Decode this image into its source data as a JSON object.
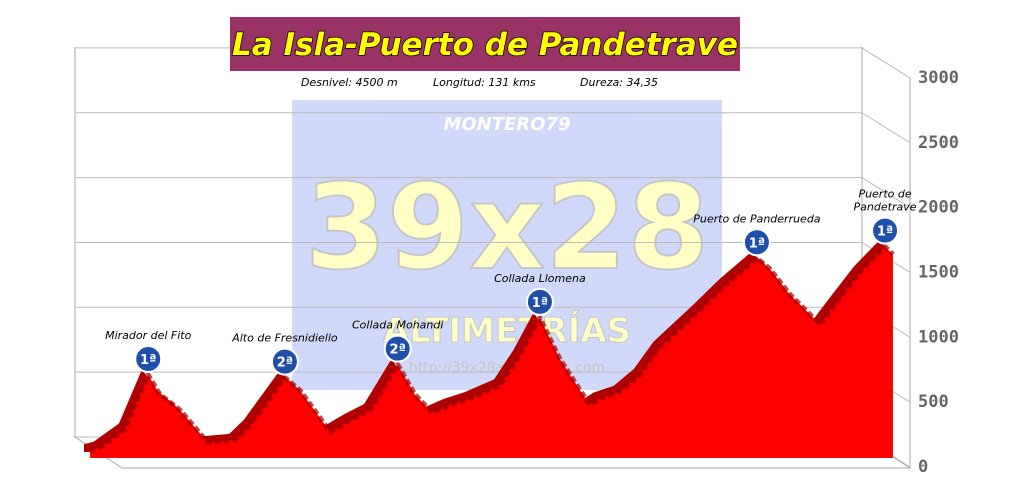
{
  "chart_data": {
    "type": "area",
    "title": "La Isla-Puerto de Pandetrave",
    "stats": [
      "Desnivel:  4500 m",
      "Longitud:  131 kms",
      "Dureza: 34,35"
    ],
    "watermark": {
      "author": "MONTERO79",
      "brand": "39x28",
      "subtitle": "ALTIMETRÍAS",
      "url": "http://39x28altimetrias.com"
    },
    "color": "#ff0000",
    "x": [
      0,
      1.6,
      5.7,
      9.5,
      11.4,
      14.7,
      19.2,
      23.7,
      26.1,
      31.8,
      34.3,
      39.2,
      42.4,
      45.7,
      50.2,
      53.0,
      55.8,
      58.7,
      62.0,
      66.9,
      70.1,
      73.4,
      76.7,
      81.5,
      83.2,
      86.4,
      89.7,
      92.9,
      99.5,
      103.6,
      108.8,
      110.9,
      114.2,
      119.1,
      121.5,
      125.6,
      129.7,
      131
    ],
    "values": [
      60,
      80,
      220,
      640,
      490,
      370,
      120,
      140,
      250,
      620,
      520,
      200,
      290,
      370,
      720,
      490,
      350,
      410,
      460,
      560,
      790,
      1080,
      760,
      410,
      460,
      510,
      640,
      850,
      1140,
      1330,
      1540,
      1460,
      1260,
      1030,
      1180,
      1430,
      1630,
      1570
    ],
    "xlim": [
      0,
      131
    ],
    "ylim": [
      0,
      3000
    ],
    "yticks": [
      0,
      500,
      1000,
      1500,
      2000,
      2500,
      3000
    ],
    "grid": true,
    "annotations": [
      {
        "text": [
          "Mirador del Fito"
        ],
        "category": "1ª",
        "x": 9.5,
        "y": 640
      },
      {
        "text": [
          "Alto de Fresnidiello"
        ],
        "category": "2ª",
        "x": 31.8,
        "y": 620
      },
      {
        "text": [
          "Collada Mohandi"
        ],
        "category": "2ª",
        "x": 50.2,
        "y": 720
      },
      {
        "text": [
          "Collada Llomena"
        ],
        "category": "1ª",
        "x": 73.4,
        "y": 1080
      },
      {
        "text": [
          "Puerto de Panderrueda"
        ],
        "category": "1ª",
        "x": 108.8,
        "y": 1540
      },
      {
        "text": [
          "Puerto de",
          "Pandetrave"
        ],
        "category": "1ª",
        "x": 129.7,
        "y": 1630
      }
    ]
  }
}
